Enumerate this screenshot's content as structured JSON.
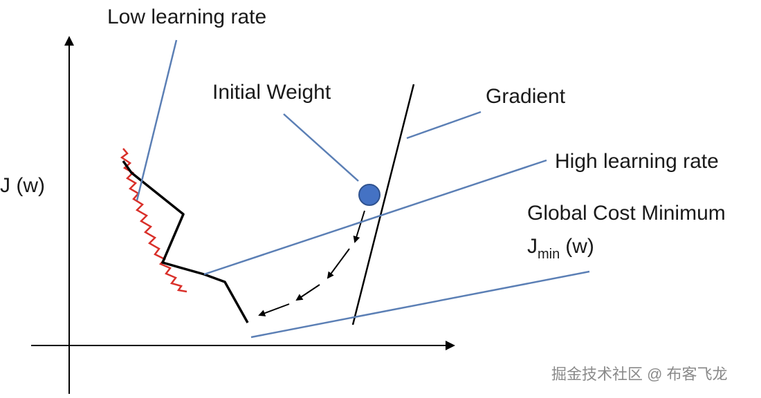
{
  "axis_label": "J (w)",
  "labels": {
    "low_learning_rate": "Low learning rate",
    "initial_weight": "Initial Weight",
    "gradient": "Gradient",
    "high_learning_rate": "High learning rate"
  },
  "global_min": {
    "text": "Global Cost Minimum",
    "symbol": "J",
    "subscript": "min",
    "argument": "(w)"
  },
  "watermark": "掘金技术社区 @ 布客飞龙"
}
